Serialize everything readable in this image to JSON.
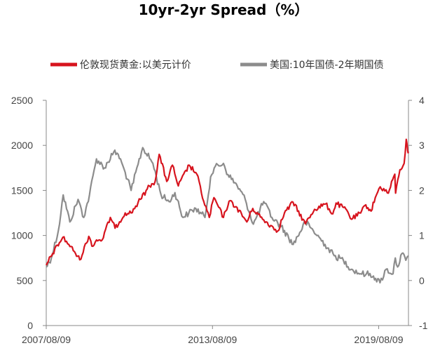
{
  "chart_data": {
    "type": "line",
    "title": "10yr-2yr Spread（%）",
    "x_tick_labels": [
      "2007/08/09",
      "2013/08/09",
      "2019/08/09"
    ],
    "y_left": {
      "ylim": [
        0,
        2500
      ],
      "ticks": [
        0,
        500,
        1000,
        1500,
        2000,
        2500
      ]
    },
    "y_right": {
      "ylim": [
        -1,
        4
      ],
      "ticks": [
        -1,
        0,
        1,
        2,
        3,
        4
      ]
    },
    "legend_position": "top",
    "grid": false,
    "series": [
      {
        "name": "伦敦现货黄金:以美元计价",
        "axis": "left",
        "color": "#d7141e",
        "points": [
          [
            "2007/08/09",
            670
          ],
          [
            "2007/11/01",
            800
          ],
          [
            "2008/03/15",
            980
          ],
          [
            "2008/06/01",
            900
          ],
          [
            "2008/08/15",
            820
          ],
          [
            "2008/10/24",
            730
          ],
          [
            "2009/02/20",
            990
          ],
          [
            "2009/04/15",
            880
          ],
          [
            "2009/06/01",
            950
          ],
          [
            "2009/08/15",
            950
          ],
          [
            "2009/12/01",
            1200
          ],
          [
            "2010/02/01",
            1080
          ],
          [
            "2010/06/15",
            1250
          ],
          [
            "2010/09/01",
            1250
          ],
          [
            "2011/01/01",
            1400
          ],
          [
            "2011/05/01",
            1550
          ],
          [
            "2011/07/15",
            1600
          ],
          [
            "2011/09/06",
            1900
          ],
          [
            "2011/12/15",
            1600
          ],
          [
            "2012/02/28",
            1780
          ],
          [
            "2012/05/15",
            1550
          ],
          [
            "2012/10/05",
            1780
          ],
          [
            "2013/01/15",
            1680
          ],
          [
            "2013/04/15",
            1380
          ],
          [
            "2013/06/28",
            1200
          ],
          [
            "2013/08/28",
            1420
          ],
          [
            "2013/12/31",
            1200
          ],
          [
            "2014/03/15",
            1380
          ],
          [
            "2014/06/15",
            1320
          ],
          [
            "2014/11/05",
            1150
          ],
          [
            "2015/01/22",
            1300
          ],
          [
            "2015/06/01",
            1180
          ],
          [
            "2015/12/17",
            1050
          ],
          [
            "2016/03/15",
            1250
          ],
          [
            "2016/07/06",
            1370
          ],
          [
            "2016/12/15",
            1130
          ],
          [
            "2017/04/15",
            1290
          ],
          [
            "2017/09/08",
            1350
          ],
          [
            "2017/12/12",
            1240
          ],
          [
            "2018/01/25",
            1360
          ],
          [
            "2018/06/15",
            1280
          ],
          [
            "2018/08/16",
            1180
          ],
          [
            "2018/12/15",
            1250
          ],
          [
            "2019/02/20",
            1340
          ],
          [
            "2019/05/01",
            1270
          ],
          [
            "2019/06/25",
            1420
          ],
          [
            "2019/08/30",
            1540
          ],
          [
            "2019/12/15",
            1470
          ],
          [
            "2020/03/09",
            1680
          ],
          [
            "2020/03/19",
            1470
          ],
          [
            "2020/05/15",
            1730
          ],
          [
            "2020/07/10",
            1800
          ],
          [
            "2020/08/06",
            2067
          ],
          [
            "2020/08/25",
            1940
          ],
          [
            "2020/09/05",
            1930
          ]
        ]
      },
      {
        "name": "美国:10年国债-2年期国债",
        "axis": "right",
        "color": "#8c8c8c",
        "points": [
          [
            "2007/08/09",
            0.3
          ],
          [
            "2007/10/15",
            0.5
          ],
          [
            "2008/01/15",
            1.1
          ],
          [
            "2008/03/20",
            1.9
          ],
          [
            "2008/06/15",
            1.3
          ],
          [
            "2008/10/01",
            1.8
          ],
          [
            "2008/12/15",
            1.4
          ],
          [
            "2009/03/01",
            1.9
          ],
          [
            "2009/06/01",
            2.7
          ],
          [
            "2009/09/15",
            2.5
          ],
          [
            "2010/01/15",
            2.85
          ],
          [
            "2010/03/15",
            2.8
          ],
          [
            "2010/06/15",
            2.4
          ],
          [
            "2010/09/01",
            2.0
          ],
          [
            "2011/02/01",
            2.95
          ],
          [
            "2011/06/15",
            2.6
          ],
          [
            "2011/10/01",
            1.9
          ],
          [
            "2012/01/15",
            1.75
          ],
          [
            "2012/04/01",
            1.95
          ],
          [
            "2012/07/15",
            1.4
          ],
          [
            "2012/10/01",
            1.5
          ],
          [
            "2013/01/01",
            1.6
          ],
          [
            "2013/05/01",
            1.4
          ],
          [
            "2013/07/15",
            2.3
          ],
          [
            "2013/09/01",
            2.5
          ],
          [
            "2013/12/31",
            2.6
          ],
          [
            "2014/03/01",
            2.35
          ],
          [
            "2014/07/01",
            2.1
          ],
          [
            "2014/10/15",
            1.8
          ],
          [
            "2015/01/30",
            1.25
          ],
          [
            "2015/06/15",
            1.75
          ],
          [
            "2015/10/01",
            1.4
          ],
          [
            "2016/02/01",
            1.2
          ],
          [
            "2016/07/08",
            0.8
          ],
          [
            "2016/12/15",
            1.3
          ],
          [
            "2017/04/01",
            1.1
          ],
          [
            "2017/09/01",
            0.8
          ],
          [
            "2017/12/31",
            0.55
          ],
          [
            "2018/05/01",
            0.45
          ],
          [
            "2018/08/15",
            0.25
          ],
          [
            "2018/12/15",
            0.15
          ],
          [
            "2019/03/01",
            0.15
          ],
          [
            "2019/06/01",
            0.1
          ],
          [
            "2019/08/27",
            -0.05
          ],
          [
            "2019/11/15",
            0.25
          ],
          [
            "2020/02/15",
            0.15
          ],
          [
            "2020/03/15",
            0.5
          ],
          [
            "2020/04/15",
            0.3
          ],
          [
            "2020/06/10",
            0.6
          ],
          [
            "2020/08/01",
            0.45
          ],
          [
            "2020/09/05",
            0.55
          ]
        ]
      }
    ]
  }
}
